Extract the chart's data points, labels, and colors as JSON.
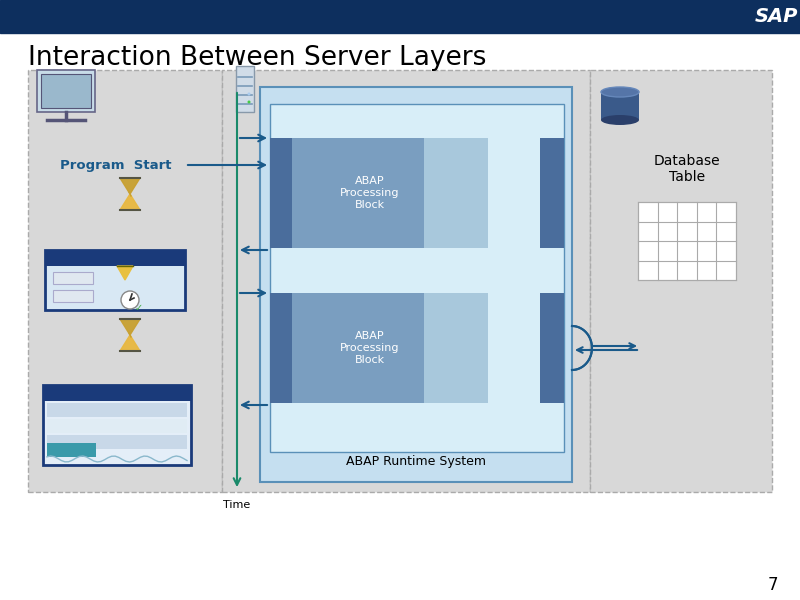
{
  "title": "Interaction Between Server Layers",
  "page_num": "7",
  "header_color": "#0d2f5e",
  "sap_text": "SAP",
  "white_bg": "#ffffff",
  "panel_color": "#d8d8d8",
  "panel_edge": "#aaaaaa",
  "abap_outer_color": "#c5dff0",
  "abap_inner_color": "#d8eef8",
  "abap_block_dark": "#4a6d9c",
  "abap_block_mid": "#7a9ec0",
  "abap_block_light": "#a8c8dc",
  "arrow_color": "#1a5a8a",
  "time_arrow_color": "#1a8a6a",
  "grid_color": "#aaaaaa",
  "db_dark": "#2a3f6a",
  "db_mid": "#3a5a8a"
}
